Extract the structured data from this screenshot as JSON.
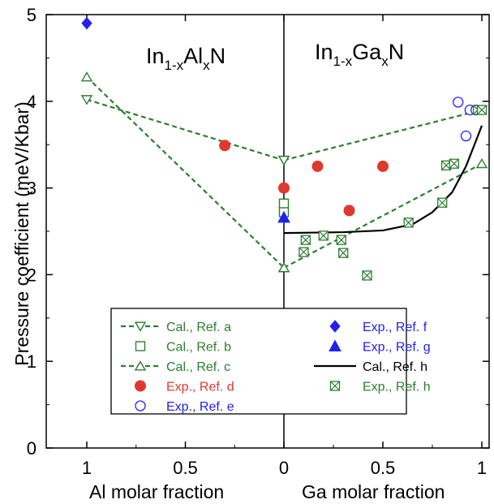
{
  "chart_data": {
    "type": "scatter",
    "ylabel": "Pressure coefficient (meV/Kbar)",
    "ylim": [
      0,
      5
    ],
    "yticks": [
      "0",
      "1",
      "2",
      "3",
      "4",
      "5"
    ],
    "xlabel_left": "Al molar fraction",
    "xlabel_right": "Ga molar fraction",
    "xticks_left": [
      "1",
      "0.5",
      "0"
    ],
    "xticks_right": [
      "0.5",
      "1"
    ],
    "annotation_left": {
      "base": "In",
      "sub1": "1-x",
      "mid": "Al",
      "sub2": "x",
      "end": "N"
    },
    "annotation_right": {
      "base": "In",
      "sub1": "1-x",
      "mid": "Ga",
      "sub2": "x",
      "end": "N"
    },
    "legend_position": "bottom-center",
    "colors": {
      "green": "#2e7d32",
      "red": "#e0382c",
      "blue": "#2222ee",
      "black": "#000000"
    },
    "series": [
      {
        "name": "Cal., Ref. a",
        "marker": "triangle-down",
        "line": "dashed",
        "color": "#2e7d32",
        "left": [
          [
            1,
            4.02
          ],
          [
            0,
            3.32
          ]
        ],
        "right": [
          [
            0,
            3.32
          ],
          [
            1,
            3.9
          ]
        ]
      },
      {
        "name": "Cal., Ref. b",
        "marker": "square",
        "line": "none",
        "color": "#2e7d32",
        "left": [],
        "right": [
          [
            0,
            2.82
          ],
          [
            0,
            2.72
          ]
        ]
      },
      {
        "name": "Cal., Ref. c",
        "marker": "triangle-up",
        "line": "dashed",
        "color": "#2e7d32",
        "left": [
          [
            1,
            4.28
          ],
          [
            0,
            2.08
          ]
        ],
        "right": [
          [
            0,
            2.08
          ],
          [
            1,
            3.28
          ]
        ]
      },
      {
        "name": "Exp., Ref. d",
        "marker": "circle-filled",
        "line": "none",
        "color": "#e0382c",
        "left": [
          [
            0.3,
            3.49
          ],
          [
            0,
            3.0
          ]
        ],
        "right": [
          [
            0.17,
            3.25
          ],
          [
            0.33,
            2.74
          ],
          [
            0.5,
            3.25
          ]
        ]
      },
      {
        "name": "Exp., Ref. e",
        "marker": "circle-open",
        "line": "none",
        "color": "#2222ee",
        "left": [],
        "right": [
          [
            0.88,
            3.99
          ],
          [
            0.92,
            3.6
          ],
          [
            0.94,
            3.9
          ],
          [
            0.97,
            3.9
          ]
        ]
      },
      {
        "name": "Exp., Ref. f",
        "marker": "diamond-filled",
        "line": "none",
        "color": "#2222ee",
        "left": [
          [
            1,
            4.9
          ]
        ],
        "right": []
      },
      {
        "name": "Exp., Ref. g",
        "marker": "triangle-filled",
        "line": "none",
        "color": "#2222ee",
        "left": [],
        "right": [
          [
            0,
            2.66
          ]
        ]
      },
      {
        "name": "Cal., Ref. h",
        "marker": "none",
        "line": "solid",
        "color": "#000000",
        "left": [],
        "right": [
          [
            0,
            2.48
          ],
          [
            0.3,
            2.49
          ],
          [
            0.5,
            2.51
          ],
          [
            0.65,
            2.58
          ],
          [
            0.75,
            2.72
          ],
          [
            0.85,
            2.95
          ],
          [
            0.92,
            3.25
          ],
          [
            0.98,
            3.6
          ],
          [
            1.0,
            3.72
          ]
        ]
      },
      {
        "name": "Exp., Ref. h",
        "marker": "square-x",
        "line": "none",
        "color": "#2e7d32",
        "left": [],
        "right": [
          [
            0.1,
            2.26
          ],
          [
            0.11,
            2.4
          ],
          [
            0.2,
            2.45
          ],
          [
            0.29,
            2.4
          ],
          [
            0.3,
            2.25
          ],
          [
            0.42,
            1.99
          ],
          [
            0.63,
            2.6
          ],
          [
            0.8,
            2.83
          ],
          [
            0.82,
            3.26
          ],
          [
            0.86,
            3.28
          ],
          [
            0.98,
            3.9
          ],
          [
            1.0,
            3.9
          ]
        ]
      }
    ]
  }
}
